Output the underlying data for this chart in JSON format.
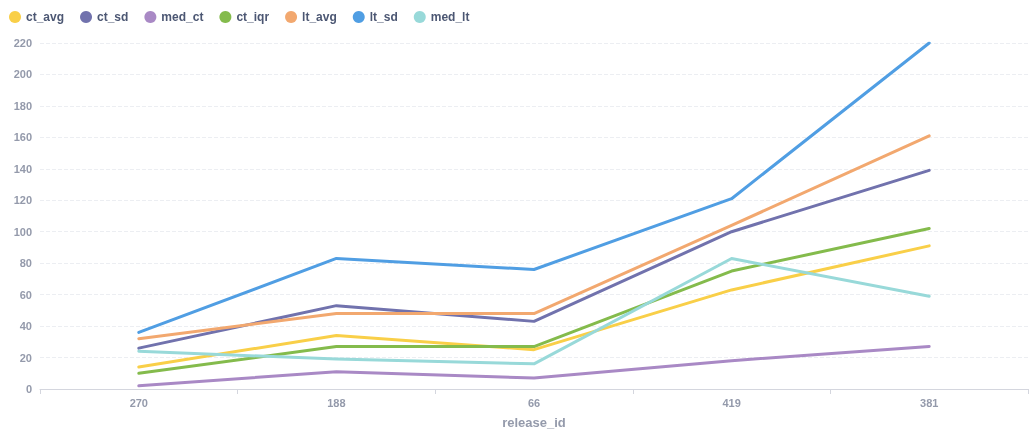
{
  "chart_data": {
    "type": "line",
    "xlabel": "release_id",
    "categories": [
      "270",
      "188",
      "66",
      "419",
      "381"
    ],
    "series": [
      {
        "name": "ct_avg",
        "color": "#f9cf48",
        "values": [
          14,
          34,
          25,
          63,
          91
        ]
      },
      {
        "name": "ct_sd",
        "color": "#7172ad",
        "values": [
          26,
          53,
          43,
          100,
          139
        ]
      },
      {
        "name": "med_ct",
        "color": "#a989c5",
        "values": [
          2,
          11,
          7,
          18,
          27
        ]
      },
      {
        "name": "ct_iqr",
        "color": "#84bb4c",
        "values": [
          10,
          27,
          27,
          75,
          102
        ]
      },
      {
        "name": "lt_avg",
        "color": "#f2a86f",
        "values": [
          32,
          48,
          48,
          104,
          161
        ]
      },
      {
        "name": "lt_sd",
        "color": "#509ee3",
        "values": [
          36,
          83,
          76,
          121,
          220
        ]
      },
      {
        "name": "med_lt",
        "color": "#98d9d9",
        "values": [
          24,
          19,
          16,
          83,
          59
        ]
      }
    ],
    "ylim": [
      0,
      220
    ],
    "yticks": [
      0,
      20,
      40,
      60,
      80,
      100,
      120,
      140,
      160,
      180,
      200,
      220
    ],
    "grid": "y",
    "legend": "top left",
    "marker": "none",
    "line_style": "solid"
  }
}
